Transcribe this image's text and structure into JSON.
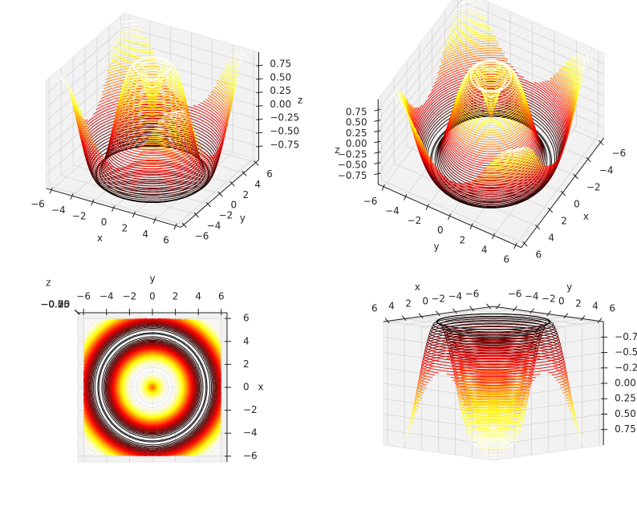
{
  "chart_data": [
    {
      "type": "contour3d",
      "colormap": "hot",
      "grid": true,
      "xlabel": "x",
      "ylabel": "y",
      "zlabel": "z",
      "xlim": [
        -6.5,
        6.5
      ],
      "ylim": [
        -6.5,
        6.5
      ],
      "zlim": [
        -1,
        1
      ],
      "xticks": [
        {
          "value": -6,
          "label": "−6"
        },
        {
          "value": -4,
          "label": "−4"
        },
        {
          "value": -2,
          "label": "−2"
        },
        0,
        2,
        4,
        6
      ],
      "yticks": [
        {
          "value": -6,
          "label": "−6"
        },
        {
          "value": -4,
          "label": "−4"
        },
        {
          "value": -2,
          "label": "−2"
        },
        0,
        2,
        4,
        6
      ],
      "zticks": [
        {
          "value": -0.75,
          "label": "−0.75"
        },
        {
          "value": -0.5,
          "label": "−0.50"
        },
        {
          "value": -0.25,
          "label": "−0.25"
        },
        {
          "value": 0,
          "label": "0.00"
        },
        0.25,
        {
          "value": 0.5,
          "label": "0.50"
        },
        0.75
      ]
    },
    {
      "type": "contour3d",
      "colormap": "hot",
      "grid": true,
      "xlabel": "x",
      "ylabel": "y",
      "zlabel": "z",
      "xlim": [
        -6.5,
        6.5
      ],
      "ylim": [
        -6.5,
        6.5
      ],
      "zlim": [
        -1,
        1
      ],
      "xticks": [
        {
          "value": -6,
          "label": "−6"
        },
        {
          "value": -4,
          "label": "−4"
        },
        {
          "value": -2,
          "label": "−2"
        },
        0,
        2,
        4,
        6
      ],
      "yticks": [
        {
          "value": -6,
          "label": "−6"
        },
        {
          "value": -4,
          "label": "−4"
        },
        {
          "value": -2,
          "label": "−2"
        },
        0,
        2,
        4,
        6
      ],
      "zticks": [
        {
          "value": -0.75,
          "label": "−0.75"
        },
        {
          "value": -0.5,
          "label": "−0.50"
        },
        {
          "value": -0.25,
          "label": "−0.25"
        },
        {
          "value": 0,
          "label": "0.00"
        },
        0.25,
        {
          "value": 0.5,
          "label": "0.50"
        },
        0.75
      ]
    },
    {
      "type": "contour3d",
      "colormap": "hot",
      "grid": true,
      "xlabel": "x",
      "ylabel": "y",
      "zlabel": "z",
      "xlim": [
        -6.5,
        6.5
      ],
      "ylim": [
        -6.5,
        6.5
      ],
      "zlim": [
        -1,
        1
      ],
      "xticks": [
        {
          "value": -6,
          "label": "−6"
        },
        {
          "value": -4,
          "label": "−4"
        },
        {
          "value": -2,
          "label": "−2"
        },
        0,
        2,
        4,
        6
      ],
      "yticks": [
        {
          "value": -6,
          "label": "−6"
        },
        {
          "value": -4,
          "label": "−4"
        },
        {
          "value": -2,
          "label": "−2"
        },
        0,
        2,
        4,
        6
      ],
      "zticks": [
        {
          "value": -0.75,
          "label": "−0.75"
        },
        {
          "value": -0.5,
          "label": "−0.50"
        },
        {
          "value": -0.25,
          "label": "−0.25"
        },
        {
          "value": 0,
          "label": "0.00"
        },
        0.25,
        {
          "value": 0.5,
          "label": "0.50"
        },
        0.75
      ]
    },
    {
      "type": "contour3d",
      "colormap": "hot",
      "grid": true,
      "xlabel": "x",
      "ylabel": "y",
      "zlabel": "z",
      "xlim": [
        -6.5,
        6.5
      ],
      "ylim": [
        -6.5,
        6.5
      ],
      "zlim": [
        -1,
        1
      ],
      "xticks": [
        {
          "value": -6,
          "label": "−6"
        },
        {
          "value": -4,
          "label": "−4"
        },
        {
          "value": -2,
          "label": "−2"
        },
        0,
        2,
        4,
        6
      ],
      "yticks": [
        {
          "value": -6,
          "label": "−6"
        },
        {
          "value": -4,
          "label": "−4"
        },
        {
          "value": -2,
          "label": "−2"
        },
        0,
        2,
        4,
        6
      ],
      "zticks": [
        {
          "value": -0.75,
          "label": "−0.75"
        },
        {
          "value": -0.5,
          "label": "−0.50"
        },
        {
          "value": -0.25,
          "label": "−0.25"
        },
        {
          "value": 0,
          "label": "0.00"
        },
        0.25,
        {
          "value": 0.5,
          "label": "0.50"
        },
        0.75
      ]
    }
  ]
}
